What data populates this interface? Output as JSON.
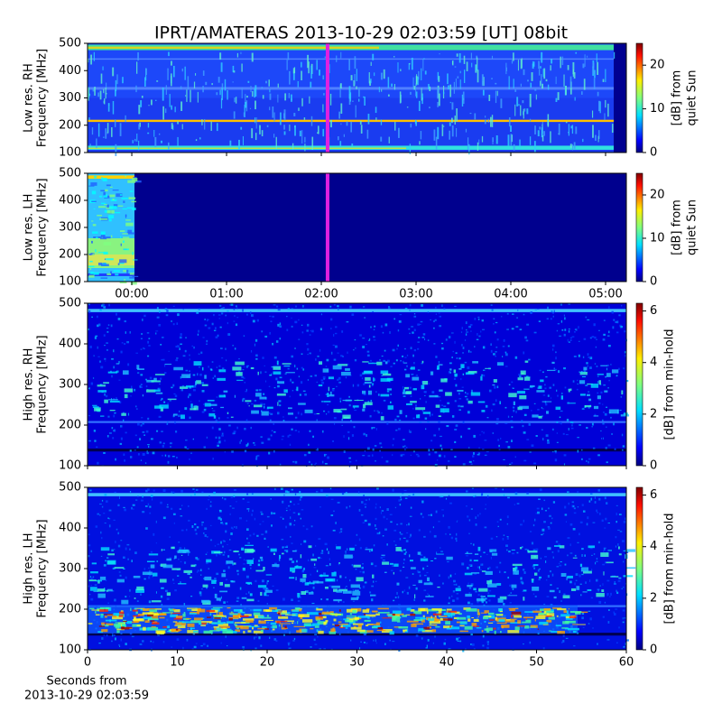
{
  "chart_data": [
    {
      "type": "spectrogram",
      "title": "IPRT/AMATERAS 2013-10-29 02:03:59 [UT]   08bit",
      "ylabel": [
        "Low res. RH",
        "Frequency [MHz]"
      ],
      "ylim": [
        100,
        500
      ],
      "yticks": [
        100,
        200,
        300,
        400,
        500
      ],
      "xlim": [
        -0.467,
        5.219
      ],
      "xticks": [
        0,
        1,
        2,
        3,
        4,
        5
      ],
      "marker_x": 2.066,
      "marker_color": "#e020e0",
      "clim": [
        0,
        25
      ],
      "cticks": [
        0,
        10,
        20
      ],
      "clabel": [
        "[dB] from",
        "quiet Sun"
      ]
    },
    {
      "type": "spectrogram",
      "ylabel": [
        "Low res. LH",
        "Frequency [MHz]"
      ],
      "ylim": [
        100,
        500
      ],
      "yticks": [
        100,
        200,
        300,
        400,
        500
      ],
      "xlim": [
        -0.467,
        5.219
      ],
      "xticks": [
        {
          "value": 0,
          "label": "00:00"
        },
        {
          "value": 1,
          "label": "01:00"
        },
        {
          "value": 2,
          "label": "02:00"
        },
        {
          "value": 3,
          "label": "03:00"
        },
        {
          "value": 4,
          "label": "04:00"
        },
        {
          "value": 5,
          "label": "05:00"
        }
      ],
      "marker_x": 2.066,
      "marker_color": "#e020e0",
      "clim": [
        0,
        25
      ],
      "cticks": [
        0,
        10,
        20
      ],
      "clabel": [
        "[dB] from",
        "quiet Sun"
      ]
    },
    {
      "type": "spectrogram",
      "ylabel": [
        "High res. RH",
        "Frequency [MHz]"
      ],
      "ylim": [
        100,
        500
      ],
      "yticks": [
        100,
        200,
        300,
        400,
        500
      ],
      "xlim": [
        0,
        60
      ],
      "xticks": [
        0,
        10,
        20,
        30,
        40,
        50,
        60
      ],
      "clim": [
        0,
        6.3
      ],
      "cticks": [
        0,
        2,
        4,
        6
      ],
      "clabel": [
        "[dB] from min-hold"
      ]
    },
    {
      "type": "spectrogram",
      "ylabel": [
        "High res. LH",
        "Frequency [MHz]"
      ],
      "ylim": [
        100,
        500
      ],
      "yticks": [
        100,
        200,
        300,
        400,
        500
      ],
      "xlim": [
        0,
        60
      ],
      "xticks": [
        0,
        10,
        20,
        30,
        40,
        50,
        60
      ],
      "xlabel": [
        "Seconds from",
        "2013-10-29 02:03:59"
      ],
      "clim": [
        0,
        6.3
      ],
      "cticks": [
        0,
        2,
        4,
        6
      ],
      "clabel": [
        "[dB] from min-hold"
      ]
    }
  ]
}
